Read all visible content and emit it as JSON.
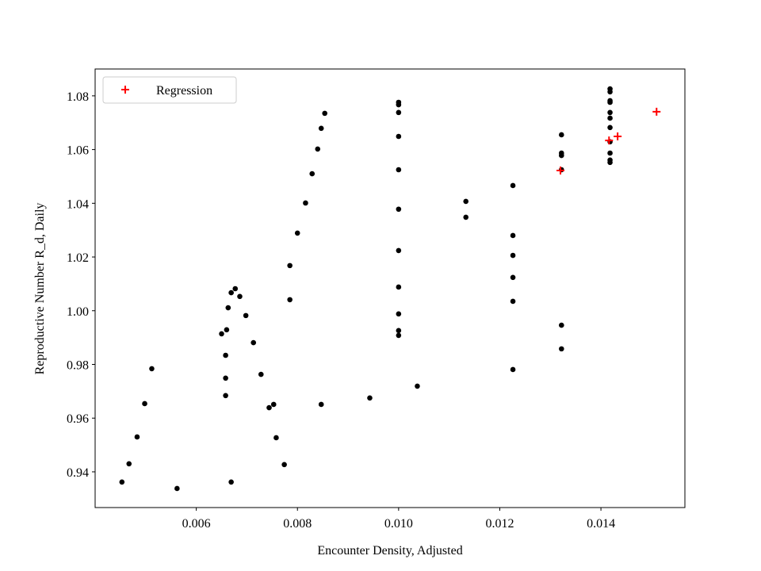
{
  "chart_data": {
    "type": "scatter",
    "x_label": "Encounter Density, Adjusted",
    "y_label": "Reproductive Number R_d, Daily",
    "xlim": [
      0.004,
      0.01566
    ],
    "ylim": [
      0.9267,
      1.09
    ],
    "xticks": [
      0.006,
      0.008,
      {
        "value": 0.01,
        "label": "0.010"
      },
      0.012,
      0.014
    ],
    "yticks": [
      0.94,
      0.96,
      0.98,
      {
        "value": 1.0,
        "label": "1.00"
      },
      1.02,
      1.04,
      1.06,
      1.08
    ],
    "legend": "upper left",
    "series": [
      {
        "color": "#000000",
        "marker": "dot",
        "x": [
          0.00453,
          0.00467,
          0.00483,
          0.00498,
          0.00512,
          0.00562,
          0.0065,
          0.00658,
          0.00658,
          0.00658,
          0.0066,
          0.00663,
          0.00669,
          0.00677,
          0.00686,
          0.00698,
          0.00713,
          0.00728,
          0.00744,
          0.00753,
          0.00758,
          0.00774,
          0.00669,
          0.00785,
          0.00785,
          0.008,
          0.00816,
          0.00829,
          0.0084,
          0.00847,
          0.00854,
          0.00847,
          0.00943,
          0.01037,
          0.01,
          0.01,
          0.01,
          0.01,
          0.01,
          0.01,
          0.01,
          0.01,
          0.01,
          0.01,
          0.01,
          0.01133,
          0.01133,
          0.01226,
          0.01226,
          0.01226,
          0.01226,
          0.01226,
          0.01226,
          0.01322,
          0.01322,
          0.01322,
          0.01322,
          0.01322,
          0.01322,
          0.01418,
          0.01418,
          0.01418,
          0.01418,
          0.01418,
          0.01418,
          0.01418,
          0.01418,
          0.01418,
          0.01418,
          0.01418
        ],
        "values": [
          0.9362,
          0.943,
          0.953,
          0.9654,
          0.9784,
          0.9338,
          0.9914,
          0.9834,
          0.9749,
          0.9684,
          0.9929,
          1.0011,
          1.0067,
          1.0082,
          1.0053,
          0.9982,
          0.9881,
          0.9763,
          0.9639,
          0.9651,
          0.9527,
          0.9427,
          0.9362,
          1.0041,
          1.0168,
          1.0289,
          1.0401,
          1.051,
          1.0602,
          1.0679,
          1.0735,
          0.9651,
          0.9675,
          0.9719,
          1.0776,
          1.0767,
          1.0738,
          1.0649,
          1.0525,
          1.0378,
          1.0224,
          1.0088,
          0.9988,
          0.9926,
          0.9908,
          1.0407,
          1.0348,
          1.0466,
          1.028,
          1.0206,
          1.0124,
          1.0035,
          0.9781,
          1.0655,
          1.0587,
          1.0578,
          1.0525,
          0.9946,
          0.9858,
          1.0826,
          1.0815,
          1.0782,
          1.0776,
          1.0738,
          1.0717,
          1.0682,
          1.0629,
          1.0587,
          1.0561,
          1.0552
        ]
      },
      {
        "name": "Regression",
        "color": "#ff0000",
        "marker": "plus",
        "x": [
          0.0132,
          0.01416,
          0.01433,
          0.0151
        ],
        "values": [
          1.0522,
          1.0634,
          1.0649,
          1.0741
        ]
      }
    ]
  }
}
